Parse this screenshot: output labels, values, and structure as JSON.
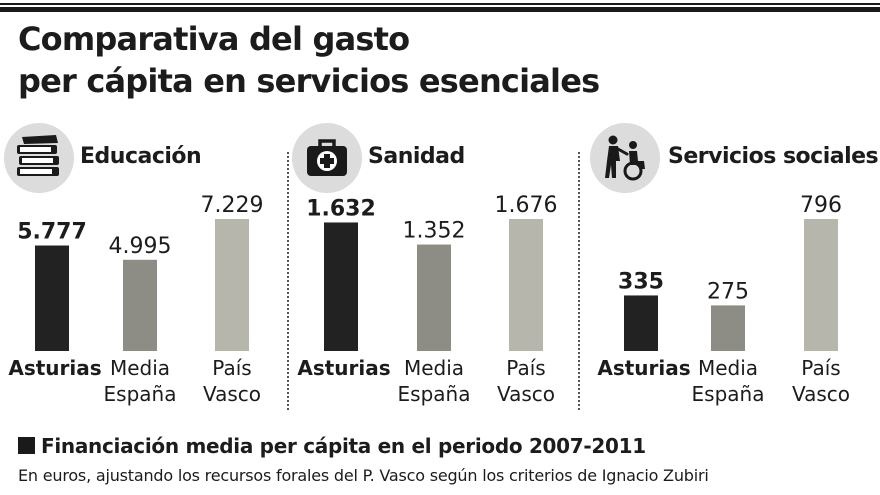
{
  "header": {
    "title_line1": "Comparativa del gasto",
    "title_line2": "per cápita en servicios esenciales"
  },
  "colors": {
    "asturias": "#222222",
    "media": "#8d8d86",
    "pais": "#b6b6ac",
    "icon_bg": "#dcdcdc"
  },
  "chart_data": [
    {
      "type": "bar",
      "title": "Educación",
      "icon": "books-icon",
      "categories": [
        "Asturias",
        "Media España",
        "País Vasco"
      ],
      "category_lines": [
        [
          "Asturias"
        ],
        [
          "Media",
          "España"
        ],
        [
          "País",
          "Vasco"
        ]
      ],
      "values": [
        5777,
        4995,
        7229
      ],
      "value_labels": [
        "5.777",
        "4.995",
        "7.229"
      ],
      "unit": "euros"
    },
    {
      "type": "bar",
      "title": "Sanidad",
      "icon": "medical-kit-icon",
      "categories": [
        "Asturias",
        "Media España",
        "País Vasco"
      ],
      "category_lines": [
        [
          "Asturias"
        ],
        [
          "Media",
          "España"
        ],
        [
          "País",
          "Vasco"
        ]
      ],
      "values": [
        1632,
        1352,
        1676
      ],
      "value_labels": [
        "1.632",
        "1.352",
        "1.676"
      ],
      "unit": "euros"
    },
    {
      "type": "bar",
      "title": "Servicios sociales",
      "icon": "caregiver-wheelchair-icon",
      "categories": [
        "Asturias",
        "Media España",
        "País Vasco"
      ],
      "category_lines": [
        [
          "Asturias"
        ],
        [
          "Media",
          "España"
        ],
        [
          "País",
          "Vasco"
        ]
      ],
      "values": [
        335,
        275,
        796
      ],
      "value_labels": [
        "335",
        "275",
        "796"
      ],
      "unit": "euros"
    }
  ],
  "footer": {
    "title": "Financiación media per cápita en el periodo 2007-2011",
    "subtitle": "En euros, ajustando los recursos forales del P. Vasco según los criterios de Ignacio Zubiri"
  }
}
